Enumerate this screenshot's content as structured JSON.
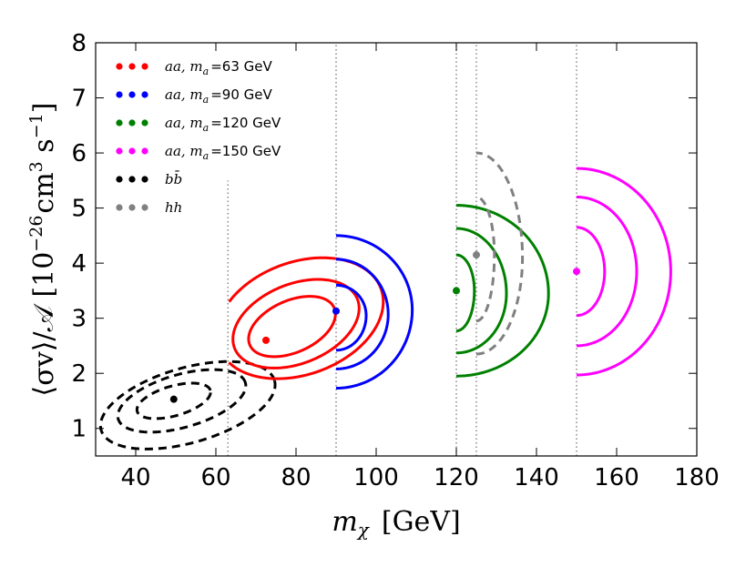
{
  "chart_data": {
    "type": "contour",
    "xlabel_symbol": "m",
    "xlabel_sub": "χ",
    "xlabel_unit": "[GeV]",
    "ylabel_text": "⟨σv⟩/𝒜 [10",
    "ylabel_exp1": "−26",
    "ylabel_mid": "cm",
    "ylabel_exp2": "3",
    "ylabel_mid2": " s",
    "ylabel_exp3": "−1",
    "ylabel_end": "]",
    "xlim": [
      30,
      180
    ],
    "ylim": [
      0.5,
      8
    ],
    "xticks": [
      40,
      60,
      80,
      100,
      120,
      140,
      160,
      180
    ],
    "xtick_labels": [
      "40",
      "60",
      "80",
      "100",
      "120",
      "140",
      "160",
      "180"
    ],
    "yticks": [
      1,
      2,
      3,
      4,
      5,
      6,
      7,
      8
    ],
    "ytick_labels": [
      "1",
      "2",
      "3",
      "4",
      "5",
      "6",
      "7",
      "8"
    ],
    "vlines": [
      {
        "x": 63,
        "y_from": 0.5,
        "y_to": 5.5
      },
      {
        "x": 90,
        "y_from": 0.5,
        "y_to": 8
      },
      {
        "x": 120,
        "y_from": 0.5,
        "y_to": 8
      },
      {
        "x": 125,
        "y_from": 0.5,
        "y_to": 8
      },
      {
        "x": 150,
        "y_from": 0.5,
        "y_to": 8
      }
    ],
    "legend": [
      {
        "label_math": "aa, m",
        "label_sub": "a",
        "label_val": "=63 GeV",
        "color": "#ff0000"
      },
      {
        "label_math": "aa, m",
        "label_sub": "a",
        "label_val": "=90 GeV",
        "color": "#0000ff"
      },
      {
        "label_math": "aa, m",
        "label_sub": "a",
        "label_val": "=120 GeV",
        "color": "#008000"
      },
      {
        "label_math": "aa, m",
        "label_sub": "a",
        "label_val": "=150 GeV",
        "color": "#ff00ff"
      },
      {
        "label_math": "bb̄",
        "label_sub": "",
        "label_val": "",
        "color": "#000000"
      },
      {
        "label_math": "hh",
        "label_sub": "",
        "label_val": "",
        "color": "#808080"
      }
    ],
    "series": [
      {
        "name": "bb",
        "color": "#000000",
        "dashed": true,
        "best_fit": {
          "x": 49.5,
          "y": 1.53
        },
        "contours": [
          {
            "kind": "ellipse",
            "cx": 49.5,
            "cy": 1.5,
            "rx": 9.5,
            "ry": 0.27,
            "rot": 16
          },
          {
            "kind": "ellipse",
            "cx": 51.5,
            "cy": 1.5,
            "rx": 16.5,
            "ry": 0.48,
            "rot": 16
          },
          {
            "kind": "ellipse",
            "cx": 53,
            "cy": 1.42,
            "rx": 22.5,
            "ry": 0.68,
            "rot": 16
          }
        ]
      },
      {
        "name": "aa_63",
        "color": "#ff0000",
        "dashed": false,
        "best_fit": {
          "x": 72.5,
          "y": 2.6
        },
        "contours": [
          {
            "kind": "ellipse",
            "cx": 79,
            "cy": 2.85,
            "rx": 11.5,
            "ry": 0.47,
            "rot": 24
          },
          {
            "kind": "ellipse",
            "cx": 80,
            "cy": 2.9,
            "rx": 16.5,
            "ry": 0.72,
            "rot": 22
          },
          {
            "kind": "clipped",
            "cx": 81,
            "cy": 3.0,
            "rx": 21.5,
            "ry": 1.02,
            "rot": 20,
            "xmin": 63
          }
        ]
      },
      {
        "name": "aa_90",
        "color": "#0000ff",
        "dashed": false,
        "best_fit": {
          "x": 90,
          "y": 3.13
        },
        "contours": [
          {
            "kind": "arc",
            "x0": 90,
            "xmax": 97.5,
            "ymid": 3.05,
            "ytop": 3.6,
            "ybot": 2.42
          },
          {
            "kind": "arc",
            "x0": 90,
            "xmax": 103,
            "ymid": 3.07,
            "ytop": 4.07,
            "ybot": 2.08
          },
          {
            "kind": "arc",
            "x0": 90,
            "xmax": 109,
            "ymid": 3.15,
            "ytop": 4.5,
            "ybot": 1.73
          }
        ]
      },
      {
        "name": "aa_120",
        "color": "#008000",
        "dashed": false,
        "best_fit": {
          "x": 120,
          "y": 3.5
        },
        "contours": [
          {
            "kind": "arc",
            "x0": 120,
            "xmax": 124.5,
            "ymid": 3.5,
            "ytop": 4.15,
            "ybot": 2.77
          },
          {
            "kind": "arc",
            "x0": 120,
            "xmax": 132.5,
            "ymid": 3.45,
            "ytop": 4.63,
            "ybot": 2.37
          },
          {
            "kind": "arc",
            "x0": 120,
            "xmax": 143,
            "ymid": 3.45,
            "ytop": 5.05,
            "ybot": 1.95
          }
        ]
      },
      {
        "name": "hh",
        "color": "#808080",
        "dashed": true,
        "best_fit": {
          "x": 125,
          "y": 4.15
        },
        "contours": [
          {
            "kind": "arc",
            "x0": 125,
            "xmax": 129.5,
            "ymid": 4.15,
            "ytop": 5.2,
            "ybot": 2.95
          },
          {
            "kind": "arc",
            "x0": 125,
            "xmax": 136.5,
            "ymid": 4.1,
            "ytop": 6.0,
            "ybot": 2.35
          }
        ]
      },
      {
        "name": "aa_150",
        "color": "#ff00ff",
        "dashed": false,
        "best_fit": {
          "x": 150,
          "y": 3.85
        },
        "contours": [
          {
            "kind": "arc",
            "x0": 150,
            "xmax": 157,
            "ymid": 3.85,
            "ytop": 4.65,
            "ybot": 3.05
          },
          {
            "kind": "arc",
            "x0": 150,
            "xmax": 165,
            "ymid": 3.85,
            "ytop": 5.2,
            "ybot": 2.5
          },
          {
            "kind": "arc",
            "x0": 150,
            "xmax": 173.5,
            "ymid": 3.85,
            "ytop": 5.72,
            "ybot": 1.97
          }
        ]
      }
    ]
  }
}
